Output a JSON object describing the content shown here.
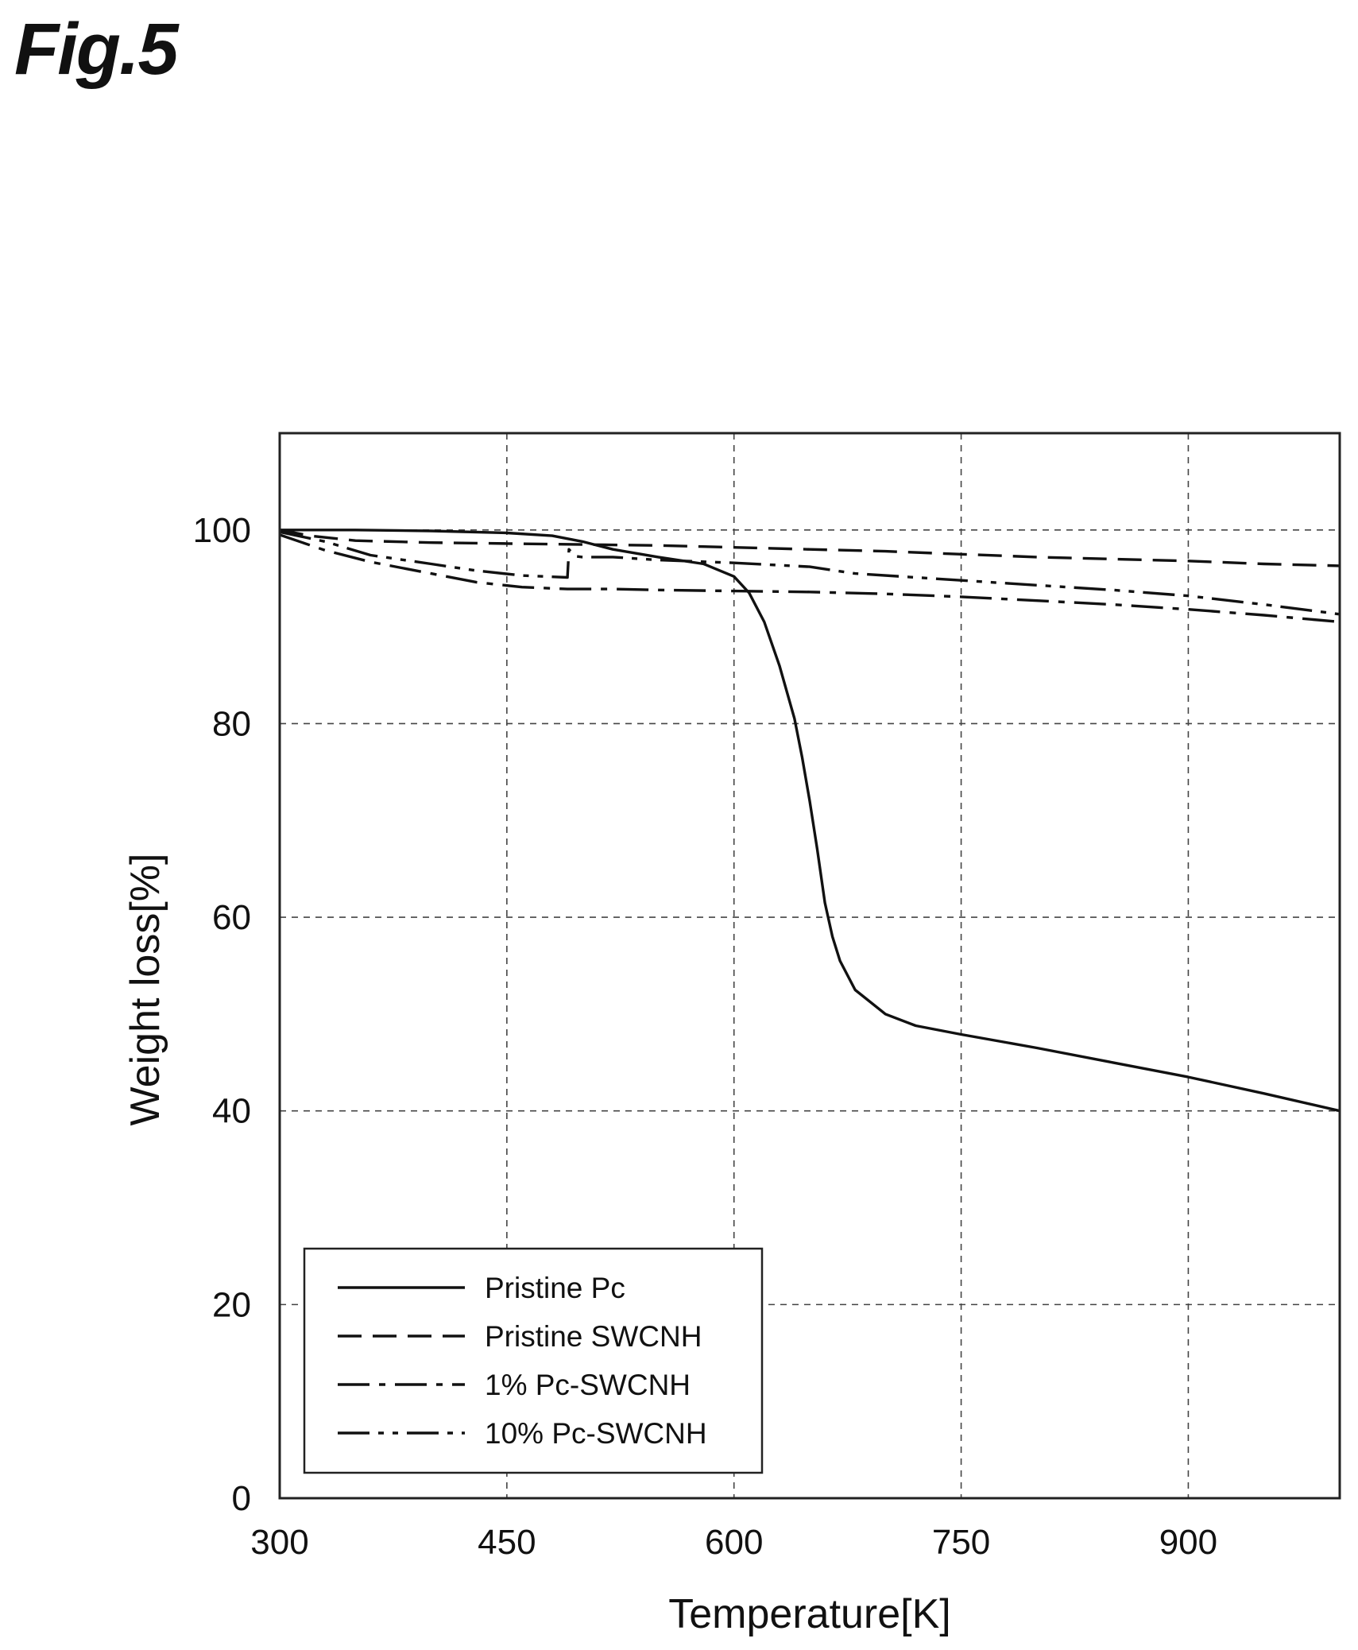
{
  "figure_label": "Fig.5",
  "chart_data": {
    "type": "line",
    "xlabel": "Temperature[K]",
    "ylabel": "Weight loss[%]",
    "xlim": [
      300,
      1000
    ],
    "ylim": [
      0,
      110
    ],
    "xticks": [
      300,
      450,
      600,
      750,
      900
    ],
    "yticks": [
      0,
      20,
      40,
      60,
      80,
      100
    ],
    "grid": true,
    "legend_position": "bottom-left",
    "series": [
      {
        "name": "Pristine Pc",
        "dash": "solid",
        "x": [
          300,
          350,
          400,
          450,
          480,
          500,
          520,
          550,
          580,
          600,
          610,
          620,
          630,
          640,
          645,
          650,
          655,
          660,
          665,
          670,
          680,
          700,
          720,
          750,
          800,
          850,
          900,
          950,
          1000
        ],
        "y": [
          100,
          100,
          99.9,
          99.7,
          99.4,
          98.8,
          98.0,
          97.2,
          96.5,
          95.2,
          93.5,
          90.5,
          86.0,
          80.5,
          76.5,
          72.0,
          67.0,
          61.5,
          58.0,
          55.5,
          52.5,
          50.0,
          48.8,
          47.9,
          46.5,
          45.0,
          43.5,
          41.8,
          40.0
        ]
      },
      {
        "name": "Pristine SWCNH",
        "dash": "dashed",
        "x": [
          300,
          320,
          350,
          400,
          450,
          500,
          550,
          600,
          650,
          700,
          750,
          800,
          850,
          900,
          950,
          1000
        ],
        "y": [
          100,
          99.4,
          98.9,
          98.7,
          98.6,
          98.5,
          98.4,
          98.2,
          98.0,
          97.8,
          97.5,
          97.2,
          97.0,
          96.8,
          96.5,
          96.3
        ]
      },
      {
        "name": "1% Pc-SWCNH",
        "dash": "dash-dot",
        "x": [
          300,
          330,
          360,
          400,
          430,
          460,
          490,
          520,
          550,
          600,
          650,
          700,
          750,
          800,
          850,
          900,
          950,
          1000
        ],
        "y": [
          99.5,
          97.9,
          96.7,
          95.5,
          94.6,
          94.1,
          93.9,
          93.9,
          93.8,
          93.7,
          93.6,
          93.4,
          93.1,
          92.7,
          92.3,
          91.8,
          91.2,
          90.5
        ]
      },
      {
        "name": "10% Pc-SWCNH",
        "dash": "dash-dot-dot",
        "x": [
          300,
          330,
          360,
          400,
          430,
          460,
          490,
          491,
          495,
          500,
          520,
          550,
          600,
          650,
          680,
          720,
          760,
          800,
          850,
          900,
          950,
          1000
        ],
        "y": [
          99.8,
          98.8,
          97.4,
          96.5,
          95.8,
          95.3,
          95.1,
          98.0,
          97.3,
          97.2,
          97.2,
          96.9,
          96.6,
          96.2,
          95.5,
          95.1,
          94.7,
          94.3,
          93.8,
          93.2,
          92.3,
          91.3
        ]
      }
    ]
  }
}
